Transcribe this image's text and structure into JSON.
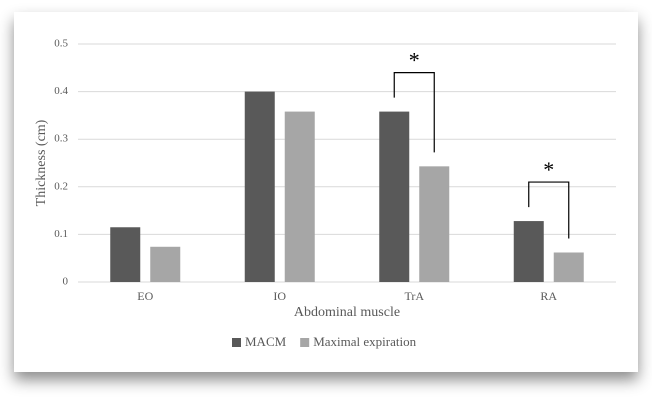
{
  "chart_data": {
    "type": "bar",
    "categories": [
      "EO",
      "IO",
      "TrA",
      "RA"
    ],
    "series": [
      {
        "name": "MACM",
        "color": "#595959",
        "values": [
          0.115,
          0.4,
          0.358,
          0.128
        ]
      },
      {
        "name": "Maximal expiration",
        "color": "#a6a6a6",
        "values": [
          0.074,
          0.358,
          0.243,
          0.062
        ]
      }
    ],
    "ylim": [
      0,
      0.5
    ],
    "yticks": [
      0,
      0.1,
      0.2,
      0.3,
      0.4,
      0.5
    ],
    "grid": true,
    "x_label": "Abdominal muscle",
    "y_label": "Thickness (cm)",
    "legend": "bottom",
    "annotations": [
      {
        "text": "*",
        "category": "TrA"
      },
      {
        "text": "*",
        "category": "RA"
      }
    ]
  }
}
